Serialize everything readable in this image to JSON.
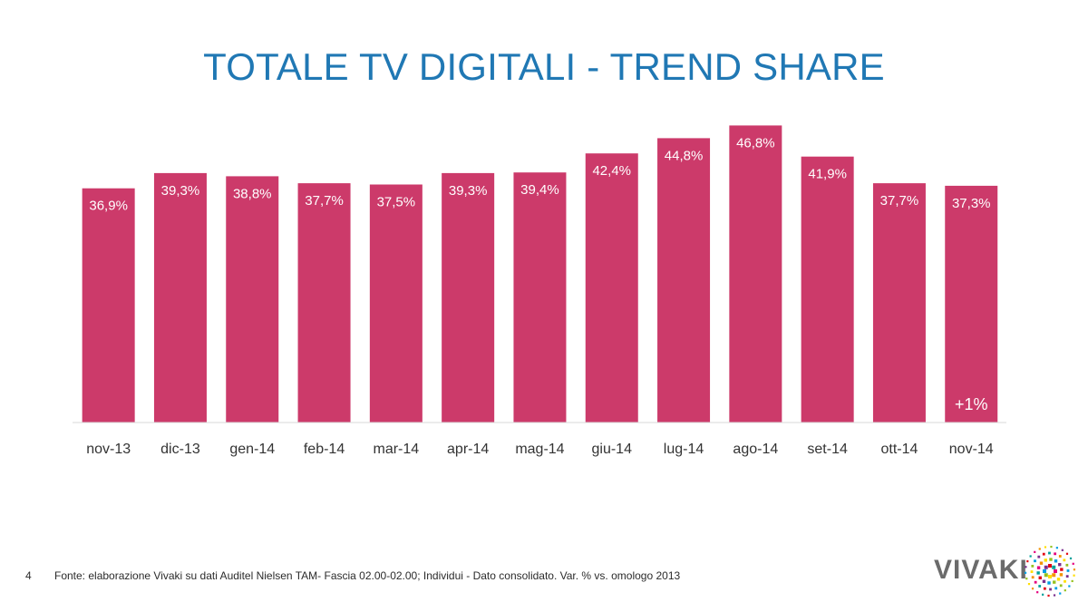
{
  "slide": {
    "title": "TOTALE TV DIGITALI - TREND SHARE",
    "page_number": "4",
    "source": "Fonte: elaborazione Vivaki su dati Auditel Nielsen TAM- Fascia 02.00-02.00; Individui - Dato consolidato. Var. % vs. omologo 2013",
    "logo_text": "VIVAKI"
  },
  "colors": {
    "title": "#2078b4",
    "bar": "#cc3a6a",
    "label": "#ffffff",
    "tick": "#333333",
    "axis": "#d9d9d9"
  },
  "chart_data": {
    "type": "bar",
    "title": "TOTALE TV DIGITALI - TREND SHARE",
    "categories": [
      "nov-13",
      "dic-13",
      "gen-14",
      "feb-14",
      "mar-14",
      "apr-14",
      "mag-14",
      "giu-14",
      "lug-14",
      "ago-14",
      "set-14",
      "ott-14",
      "nov-14"
    ],
    "values": [
      36.9,
      39.3,
      38.8,
      37.7,
      37.5,
      39.3,
      39.4,
      42.4,
      44.8,
      46.8,
      41.9,
      37.7,
      37.3
    ],
    "value_labels": [
      "36,9%",
      "39,3%",
      "38,8%",
      "37,7%",
      "37,5%",
      "39,3%",
      "39,4%",
      "42,4%",
      "44,8%",
      "46,8%",
      "41,9%",
      "37,7%",
      "37,3%"
    ],
    "annotation": {
      "category": "nov-14",
      "text": "+1%"
    },
    "xlabel": "",
    "ylabel": "",
    "ylim": [
      0,
      48
    ],
    "grid": false,
    "legend": "none"
  }
}
